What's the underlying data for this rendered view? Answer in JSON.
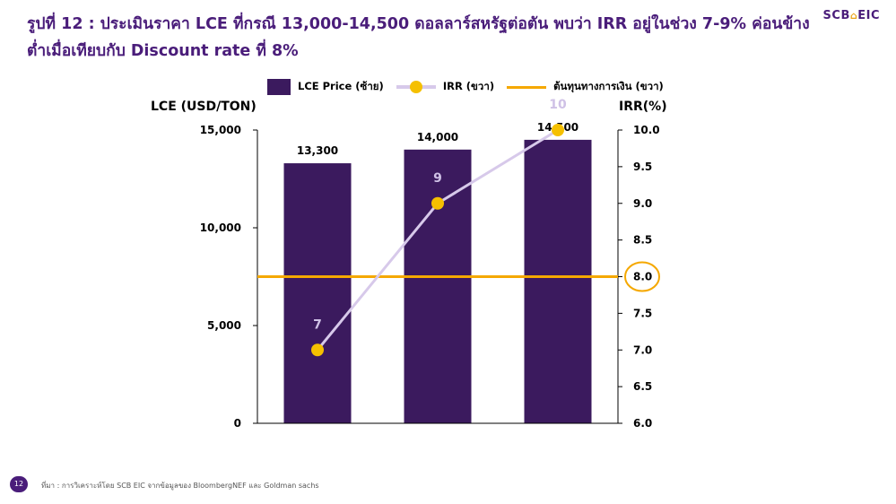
{
  "page": {
    "title": "รูปที่ 12 : ประเมินราคา LCE ที่กรณี 13,000-14,500 ดอลลาร์สหรัฐต่อตัน พบว่า IRR อยู่ในช่วง 7-9% ค่อนข้างต่ำเมื่อเทียบกับ Discount rate ที่ 8%",
    "brand": "SCB",
    "brand_symbol": "⌂",
    "brand_suffix": "EIC",
    "page_number": "12",
    "source": "ที่มา : การวิเคราะห์โดย SCB EIC จากข้อมูลของ BloombergNEF และ Goldman sachs"
  },
  "legend": {
    "bar": "LCE Price (ซ้าย)",
    "line": "IRR (ขวา)",
    "hline": "ต้นทุนทางการเงิน (ขวา)"
  },
  "chart_data": {
    "type": "bar",
    "title": "",
    "ylabel": "LCE (USD/TON)",
    "y2label": "IRR(%)",
    "ylim": [
      0,
      15000
    ],
    "y2lim": [
      6.0,
      10.0
    ],
    "yticks": [
      "0",
      "5,000",
      "10,000",
      "15,000"
    ],
    "y2ticks": [
      "6.0",
      "6.5",
      "7.0",
      "7.5",
      "8.0",
      "8.5",
      "9.0",
      "9.5",
      "10.0"
    ],
    "categories": [
      "",
      "",
      ""
    ],
    "series": [
      {
        "name": "LCE Price (ซ้าย)",
        "type": "bar",
        "axis": "left",
        "values": [
          13300,
          14000,
          14500
        ],
        "labels": [
          "13,300",
          "14,000",
          "14,500"
        ]
      },
      {
        "name": "IRR (ขวา)",
        "type": "line",
        "axis": "right",
        "values": [
          7,
          9,
          10
        ],
        "labels": [
          "7",
          "9",
          "10"
        ]
      },
      {
        "name": "ต้นทุนทางการเงิน (ขวา)",
        "type": "hline",
        "axis": "right",
        "value": 8.0
      }
    ],
    "highlight_tick": "8.0",
    "colors": {
      "bar": "#3b1a5e",
      "line": "#d7c9ea",
      "marker": "#f5c000",
      "hline": "#f5a800",
      "highlight": "#f5a800"
    },
    "grid": false,
    "legend_position": "top"
  }
}
